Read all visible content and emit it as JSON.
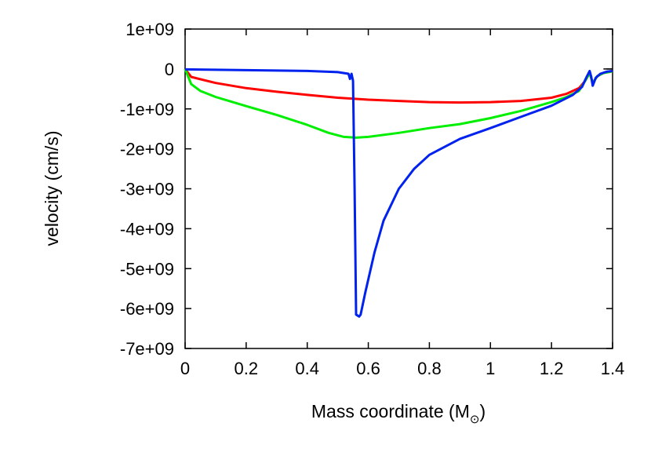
{
  "chart_data": {
    "type": "line",
    "title": "",
    "xlabel": "Mass coordinate (M",
    "xlabel_sub": "⊙",
    "xlabel_end": ")",
    "ylabel": "velocity (cm/s)",
    "xlim": [
      0,
      1.4
    ],
    "ylim": [
      -7000000000,
      1000000000
    ],
    "grid": false,
    "legend": "none",
    "x_ticks": [
      0,
      0.2,
      0.4,
      0.6,
      0.8,
      1.0,
      1.2,
      1.4
    ],
    "x_tick_labels": [
      "0",
      "0.2",
      "0.4",
      "0.6",
      "0.8",
      "1",
      "1.2",
      "1.4"
    ],
    "y_ticks": [
      1000000000,
      0,
      -1000000000,
      -2000000000,
      -3000000000,
      -4000000000,
      -5000000000,
      -6000000000,
      -7000000000
    ],
    "y_tick_labels": [
      "1e+09",
      "0",
      "-1e+09",
      "-2e+09",
      "-3e+09",
      "-4e+09",
      "-5e+09",
      "-6e+09",
      "-7e+09"
    ],
    "series": [
      {
        "color": "#ff0000",
        "points": [
          [
            0,
            0
          ],
          [
            0.02,
            -200000000
          ],
          [
            0.1,
            -350000000
          ],
          [
            0.2,
            -480000000
          ],
          [
            0.3,
            -570000000
          ],
          [
            0.4,
            -650000000
          ],
          [
            0.5,
            -720000000
          ],
          [
            0.6,
            -770000000
          ],
          [
            0.7,
            -800000000
          ],
          [
            0.8,
            -830000000
          ],
          [
            0.9,
            -840000000
          ],
          [
            1.0,
            -830000000
          ],
          [
            1.1,
            -800000000
          ],
          [
            1.2,
            -720000000
          ],
          [
            1.25,
            -620000000
          ],
          [
            1.29,
            -480000000
          ],
          [
            1.31,
            -300000000
          ],
          [
            1.325,
            -100000000
          ],
          [
            1.335,
            -350000000
          ],
          [
            1.35,
            -180000000
          ],
          [
            1.37,
            -100000000
          ],
          [
            1.4,
            -60000000
          ]
        ]
      },
      {
        "color": "#00ee00",
        "points": [
          [
            0,
            0
          ],
          [
            0.02,
            -380000000
          ],
          [
            0.05,
            -550000000
          ],
          [
            0.1,
            -700000000
          ],
          [
            0.2,
            -930000000
          ],
          [
            0.3,
            -1150000000
          ],
          [
            0.4,
            -1400000000
          ],
          [
            0.47,
            -1600000000
          ],
          [
            0.52,
            -1700000000
          ],
          [
            0.56,
            -1720000000
          ],
          [
            0.6,
            -1700000000
          ],
          [
            0.7,
            -1600000000
          ],
          [
            0.8,
            -1480000000
          ],
          [
            0.9,
            -1380000000
          ],
          [
            1.0,
            -1230000000
          ],
          [
            1.1,
            -1050000000
          ],
          [
            1.2,
            -830000000
          ],
          [
            1.25,
            -700000000
          ],
          [
            1.29,
            -550000000
          ],
          [
            1.31,
            -300000000
          ],
          [
            1.325,
            -100000000
          ],
          [
            1.335,
            -350000000
          ],
          [
            1.35,
            -180000000
          ],
          [
            1.37,
            -100000000
          ],
          [
            1.4,
            -60000000
          ]
        ]
      },
      {
        "color": "#0022ee",
        "points": [
          [
            0,
            -10000000
          ],
          [
            0.1,
            -20000000
          ],
          [
            0.2,
            -30000000
          ],
          [
            0.3,
            -40000000
          ],
          [
            0.4,
            -50000000
          ],
          [
            0.5,
            -80000000
          ],
          [
            0.535,
            -120000000
          ],
          [
            0.54,
            -250000000
          ],
          [
            0.545,
            -120000000
          ],
          [
            0.55,
            -300000000
          ],
          [
            0.555,
            -3000000000
          ],
          [
            0.56,
            -6150000000
          ],
          [
            0.57,
            -6200000000
          ],
          [
            0.575,
            -6150000000
          ],
          [
            0.59,
            -5600000000
          ],
          [
            0.62,
            -4600000000
          ],
          [
            0.65,
            -3800000000
          ],
          [
            0.7,
            -3000000000
          ],
          [
            0.75,
            -2500000000
          ],
          [
            0.8,
            -2150000000
          ],
          [
            0.9,
            -1750000000
          ],
          [
            1.0,
            -1480000000
          ],
          [
            1.1,
            -1200000000
          ],
          [
            1.2,
            -920000000
          ],
          [
            1.27,
            -650000000
          ],
          [
            1.3,
            -450000000
          ],
          [
            1.315,
            -200000000
          ],
          [
            1.325,
            -50000000
          ],
          [
            1.33,
            -200000000
          ],
          [
            1.335,
            -420000000
          ],
          [
            1.345,
            -220000000
          ],
          [
            1.36,
            -120000000
          ],
          [
            1.38,
            -70000000
          ],
          [
            1.4,
            -50000000
          ]
        ]
      }
    ],
    "end_marker": {
      "x_from": 1.37,
      "x_to": 1.4,
      "y": 0,
      "color": "#000000"
    }
  }
}
